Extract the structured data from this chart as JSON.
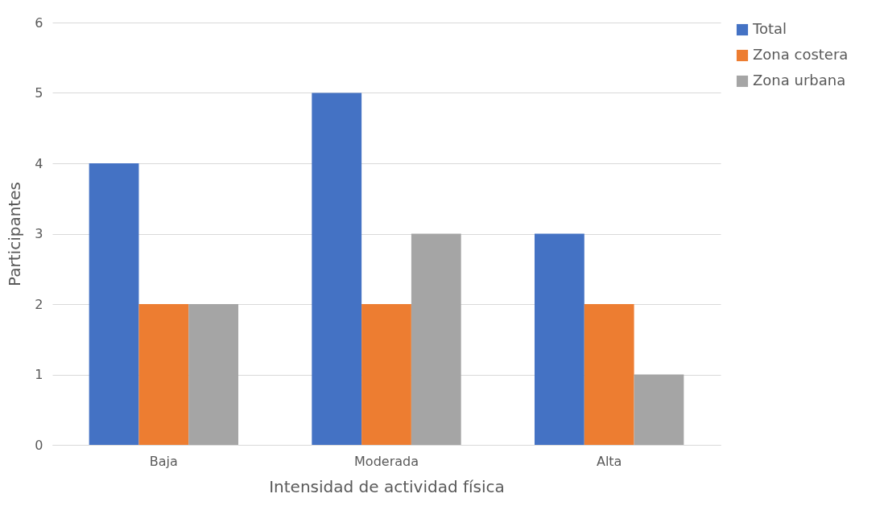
{
  "chart_data": {
    "type": "bar",
    "xlabel": "Intensidad de actividad física",
    "ylabel": "Participantes",
    "categories": [
      "Baja",
      "Moderada",
      "Alta"
    ],
    "series": [
      {
        "name": "Total",
        "color": "#4472c4",
        "values": [
          4,
          5,
          3
        ]
      },
      {
        "name": "Zona costera",
        "color": "#ed7d31",
        "values": [
          2,
          2,
          2
        ]
      },
      {
        "name": "Zona urbana",
        "color": "#a5a5a5",
        "values": [
          2,
          3,
          1
        ]
      }
    ],
    "ylim": [
      0,
      6
    ],
    "yticks": [
      0,
      1,
      2,
      3,
      4,
      5,
      6
    ],
    "grid": "y",
    "legend": "right"
  }
}
